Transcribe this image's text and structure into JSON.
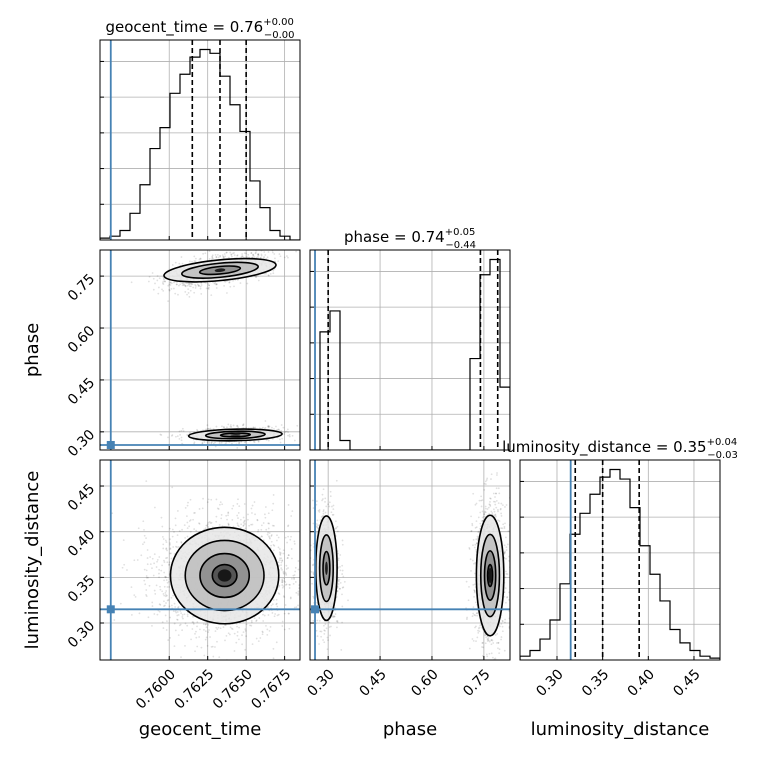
{
  "chart_data": {
    "type": "corner",
    "parameters": [
      "geocent_time",
      "phase",
      "luminosity_distance"
    ],
    "axis_labels": {
      "geocent_time": "geocent_time",
      "phase": "phase",
      "luminosity_distance": "luminosity_distance"
    },
    "truths": {
      "geocent_time": 0.7562,
      "phase": 0.262,
      "luminosity_distance": 0.315
    },
    "truth_color": "#4682b4",
    "ranges": {
      "geocent_time": [
        0.7555,
        0.7685
      ],
      "phase": [
        0.2475,
        0.8255
      ],
      "luminosity_distance": [
        0.2595,
        0.4785
      ]
    },
    "ticks": {
      "geocent_time": [
        "0.7600",
        "0.7625",
        "0.7650",
        "0.7675"
      ],
      "phase": [
        "0.30",
        "0.45",
        "0.60",
        "0.75"
      ],
      "luminosity_distance": [
        "0.30",
        "0.35",
        "0.40",
        "0.45"
      ]
    },
    "diagonal_titles": [
      {
        "param": "geocent_time",
        "prefix": "geocent_time = 0.76",
        "plus": "+0.00",
        "minus": "−0.00"
      },
      {
        "param": "phase",
        "prefix": "phase = 0.74",
        "plus": "+0.05",
        "minus": "−0.44"
      },
      {
        "param": "luminosity_distance",
        "prefix": "luminosity_distance = 0.35",
        "plus": "+0.04",
        "minus": "−0.03"
      }
    ],
    "quantiles": {
      "geocent_time": [
        0.7615,
        0.7633,
        0.765
      ],
      "phase": [
        0.3,
        0.74,
        0.79
      ],
      "luminosity_distance": [
        0.32,
        0.35,
        0.39
      ]
    },
    "histograms": {
      "geocent_time": {
        "edges": [
          0.7555,
          0.75615,
          0.7568,
          0.75745,
          0.7581,
          0.75875,
          0.7594,
          0.76005,
          0.7607,
          0.76135,
          0.762,
          0.76265,
          0.7633,
          0.76395,
          0.7646,
          0.76525,
          0.7659,
          0.76655,
          0.7672,
          0.76785,
          0.7685
        ],
        "counts": [
          0.01,
          0.02,
          0.05,
          0.14,
          0.29,
          0.48,
          0.59,
          0.77,
          0.87,
          0.96,
          1.0,
          0.98,
          0.86,
          0.71,
          0.57,
          0.31,
          0.17,
          0.05,
          0.02,
          0.0
        ]
      },
      "phase": {
        "edges": [
          0.2475,
          0.2764,
          0.3053,
          0.3342,
          0.3631,
          0.392,
          0.4209,
          0.4498,
          0.4787,
          0.5076,
          0.5365,
          0.5654,
          0.5943,
          0.6232,
          0.6521,
          0.681,
          0.7099,
          0.7388,
          0.7677,
          0.7966,
          0.8255
        ],
        "counts": [
          0.0,
          0.62,
          0.73,
          0.05,
          0.0,
          0.0,
          0.0,
          0.0,
          0.0,
          0.0,
          0.0,
          0.0,
          0.0,
          0.0,
          0.0,
          0.0,
          0.48,
          0.92,
          1.0,
          0.33
        ]
      },
      "luminosity_distance": {
        "edges": [
          0.2595,
          0.27045,
          0.2814,
          0.29235,
          0.3033,
          0.31425,
          0.3252,
          0.33615,
          0.3471,
          0.35805,
          0.369,
          0.37995,
          0.3909,
          0.40185,
          0.4128,
          0.42375,
          0.4347,
          0.44565,
          0.4566,
          0.46755,
          0.4785
        ],
        "counts": [
          0.02,
          0.05,
          0.11,
          0.21,
          0.4,
          0.66,
          0.77,
          0.87,
          0.96,
          1.0,
          0.95,
          0.8,
          0.6,
          0.45,
          0.31,
          0.16,
          0.09,
          0.05,
          0.02,
          0.01
        ]
      }
    },
    "two_d": [
      {
        "x": "geocent_time",
        "y": "phase",
        "blobs": [
          {
            "cx": 0.7633,
            "cy": 0.767,
            "sx": 0.00125,
            "sy": 0.018,
            "rho": 0.55,
            "n": 1100,
            "levels": [
              2.2,
              1.5,
              0.8
            ]
          },
          {
            "cx": 0.7643,
            "cy": 0.291,
            "sx": 0.0012,
            "sy": 0.0085,
            "rho": 0.25,
            "n": 650,
            "levels": [
              2.2,
              1.4,
              0.7
            ]
          }
        ]
      },
      {
        "x": "geocent_time",
        "y": "luminosity_distance",
        "blobs": [
          {
            "cx": 0.7636,
            "cy": 0.352,
            "sx": 0.0016,
            "sy": 0.024,
            "rho": 0.0,
            "n": 2200,
            "levels": [
              2.2,
              1.6,
              1.0,
              0.5
            ]
          }
        ]
      },
      {
        "x": "phase",
        "y": "luminosity_distance",
        "blobs": [
          {
            "cx": 0.295,
            "cy": 0.36,
            "sx": 0.014,
            "sy": 0.026,
            "rho": 0.0,
            "n": 700,
            "levels": [
              2.2,
              1.4,
              0.7
            ]
          },
          {
            "cx": 0.768,
            "cy": 0.352,
            "sx": 0.018,
            "sy": 0.03,
            "rho": 0.0,
            "n": 1100,
            "levels": [
              2.2,
              1.5,
              0.9,
              0.4
            ]
          }
        ]
      }
    ]
  }
}
